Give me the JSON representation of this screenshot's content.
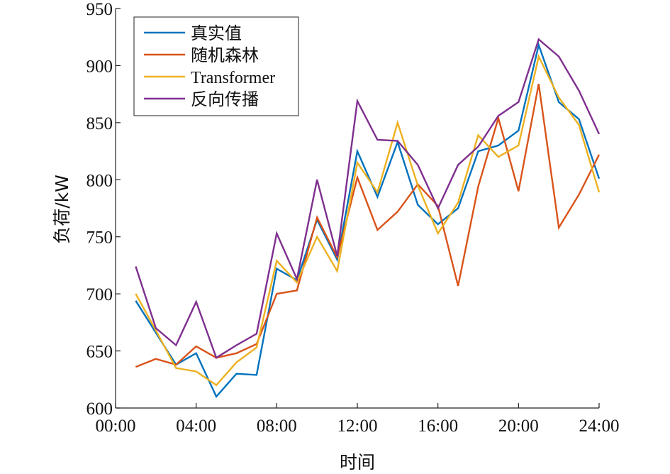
{
  "chart_data": {
    "type": "line",
    "xlabel": "时间",
    "ylabel": "负荷/kW",
    "x": [
      1,
      2,
      3,
      4,
      5,
      6,
      7,
      8,
      9,
      10,
      11,
      12,
      13,
      14,
      15,
      16,
      17,
      18,
      19,
      20,
      21,
      22,
      23,
      24
    ],
    "xlim": [
      0,
      24
    ],
    "ylim": [
      600,
      950
    ],
    "xticks": [
      0,
      4,
      8,
      12,
      16,
      20,
      24
    ],
    "xtick_labels": [
      "00:00",
      "04:00",
      "08:00",
      "12:00",
      "16:00",
      "20:00",
      "24:00"
    ],
    "yticks": [
      600,
      650,
      700,
      750,
      800,
      850,
      900,
      950
    ],
    "ytick_labels": [
      "600",
      "650",
      "700",
      "750",
      "800",
      "850",
      "900",
      "950"
    ],
    "grid": false,
    "legend_position": "top-left",
    "series": [
      {
        "name": "真实值",
        "color": "#0072BD",
        "values": [
          694,
          666,
          638,
          648,
          610,
          630,
          629,
          722,
          712,
          765,
          730,
          825,
          785,
          833,
          778,
          761,
          775,
          825,
          830,
          843,
          918,
          868,
          853,
          801
        ]
      },
      {
        "name": "随机森林",
        "color": "#D95319",
        "values": [
          636,
          643,
          638,
          654,
          644,
          648,
          656,
          700,
          703,
          767,
          732,
          802,
          756,
          772,
          796,
          777,
          707,
          794,
          854,
          790,
          884,
          758,
          787,
          822
        ]
      },
      {
        "name": "Transformer",
        "color": "#EDB120",
        "values": [
          700,
          668,
          635,
          632,
          620,
          640,
          653,
          729,
          710,
          750,
          720,
          815,
          789,
          850,
          795,
          753,
          780,
          839,
          820,
          830,
          908,
          872,
          848,
          789
        ]
      },
      {
        "name": "反向传播",
        "color": "#7E2F8E",
        "values": [
          724,
          670,
          655,
          693,
          644,
          655,
          665,
          753,
          713,
          800,
          733,
          869,
          835,
          834,
          813,
          775,
          813,
          829,
          856,
          868,
          923,
          908,
          878,
          840
        ]
      }
    ]
  }
}
